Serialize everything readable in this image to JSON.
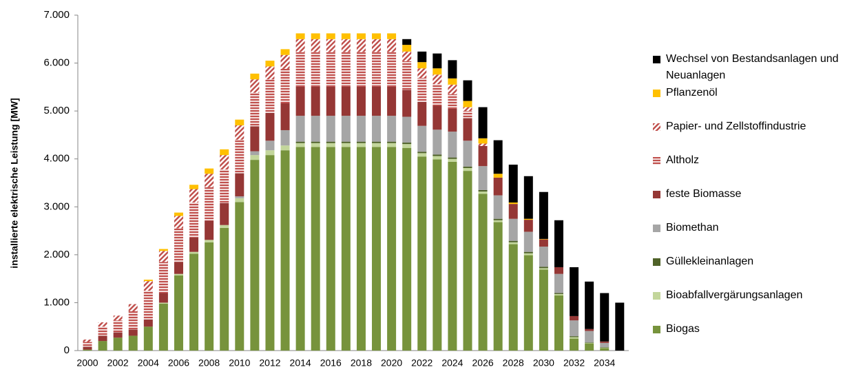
{
  "chart_data": {
    "type": "stacked-bar",
    "ylabel": "installierte elektrische Leistung [MW]",
    "categories": [
      "2000",
      null,
      "2002",
      null,
      "2004",
      null,
      "2006",
      null,
      "2008",
      null,
      "2010",
      null,
      "2012",
      null,
      "2014",
      null,
      "2016",
      null,
      "2018",
      null,
      "2020",
      null,
      "2022",
      null,
      "2024",
      null,
      "2026",
      null,
      "2028",
      null,
      "2030",
      null,
      "2032",
      null,
      "2034",
      null
    ],
    "ylim": [
      0,
      7000
    ],
    "yticks": [
      0,
      {
        "value": 1000,
        "label": "1.000"
      },
      {
        "value": 2000,
        "label": "2.000"
      },
      {
        "value": 3000,
        "label": "3.000"
      },
      {
        "value": 4000,
        "label": "4.000"
      },
      {
        "value": 5000,
        "label": "5.000"
      },
      {
        "value": 6000,
        "label": "6.000"
      },
      {
        "value": 7000,
        "label": "7.000"
      }
    ],
    "grid": false,
    "legend": "right",
    "series": [
      {
        "name": "Biogas",
        "color": "#77933c",
        "values": [
          20,
          200,
          270,
          310,
          500,
          980,
          1570,
          2020,
          2260,
          2560,
          3100,
          3980,
          4080,
          4180,
          4250,
          4250,
          4250,
          4250,
          4250,
          4250,
          4250,
          4230,
          4050,
          3990,
          3940,
          3750,
          3270,
          2680,
          2220,
          1990,
          1690,
          1150,
          250,
          150,
          50,
          0
        ]
      },
      {
        "name": "Bioabfallvergärungsanlagen",
        "color": "#c3d69b",
        "values": [
          0,
          0,
          0,
          0,
          0,
          20,
          30,
          40,
          50,
          60,
          80,
          100,
          100,
          100,
          80,
          80,
          80,
          80,
          80,
          80,
          80,
          80,
          70,
          70,
          60,
          60,
          50,
          40,
          40,
          40,
          30,
          30,
          30,
          10,
          10,
          0
        ]
      },
      {
        "name": "Güllekleinanlagen",
        "color": "#4f6228",
        "values": [
          0,
          0,
          0,
          0,
          0,
          0,
          0,
          0,
          0,
          0,
          0,
          0,
          0,
          0,
          30,
          30,
          30,
          30,
          30,
          30,
          30,
          30,
          30,
          30,
          30,
          30,
          30,
          30,
          30,
          30,
          30,
          20,
          20,
          10,
          10,
          0
        ]
      },
      {
        "name": "Biomethan",
        "color": "#a6a6a6",
        "values": [
          0,
          0,
          0,
          0,
          0,
          0,
          0,
          0,
          0,
          0,
          40,
          80,
          200,
          320,
          540,
          540,
          540,
          540,
          540,
          540,
          540,
          540,
          540,
          520,
          540,
          540,
          500,
          490,
          460,
          420,
          420,
          400,
          330,
          240,
          90,
          0
        ]
      },
      {
        "name": "feste Biomasse",
        "color": "#953735",
        "values": [
          60,
          110,
          110,
          130,
          150,
          200,
          250,
          300,
          400,
          460,
          480,
          520,
          580,
          560,
          610,
          610,
          610,
          610,
          610,
          610,
          610,
          560,
          500,
          500,
          480,
          470,
          420,
          370,
          310,
          250,
          150,
          140,
          90,
          40,
          30,
          0
        ]
      },
      {
        "name": "Altholz",
        "color": "#c0504d",
        "pattern": "horizontal",
        "values": [
          100,
          190,
          250,
          380,
          600,
          650,
          700,
          730,
          700,
          700,
          700,
          700,
          700,
          720,
          720,
          720,
          720,
          720,
          720,
          720,
          720,
          600,
          500,
          450,
          300,
          150,
          0,
          0,
          0,
          0,
          0,
          0,
          0,
          0,
          0,
          0
        ]
      },
      {
        "name": "Papier- und Zellstoffindustrie",
        "color": "#c0504d",
        "pattern": "diagonal",
        "values": [
          50,
          90,
          100,
          150,
          200,
          230,
          260,
          280,
          280,
          300,
          300,
          280,
          270,
          290,
          270,
          270,
          270,
          270,
          270,
          270,
          270,
          200,
          200,
          200,
          200,
          80,
          50,
          0,
          0,
          0,
          0,
          0,
          0,
          0,
          0,
          0
        ]
      },
      {
        "name": "Pflanzenöl",
        "color": "#ffc000",
        "values": [
          0,
          0,
          0,
          0,
          30,
          40,
          70,
          90,
          110,
          120,
          120,
          120,
          120,
          120,
          120,
          120,
          120,
          120,
          120,
          120,
          120,
          140,
          130,
          130,
          130,
          130,
          110,
          80,
          30,
          20,
          10,
          0,
          0,
          0,
          0,
          0
        ]
      },
      {
        "name": "Wechsel von Bestandsanlagen und Neuanlagen",
        "color": "#000000",
        "values": [
          0,
          0,
          0,
          0,
          0,
          0,
          0,
          0,
          0,
          0,
          0,
          0,
          0,
          0,
          0,
          0,
          0,
          0,
          0,
          0,
          0,
          120,
          220,
          310,
          380,
          430,
          650,
          700,
          790,
          890,
          980,
          980,
          1020,
          990,
          1010,
          1000
        ]
      }
    ]
  }
}
